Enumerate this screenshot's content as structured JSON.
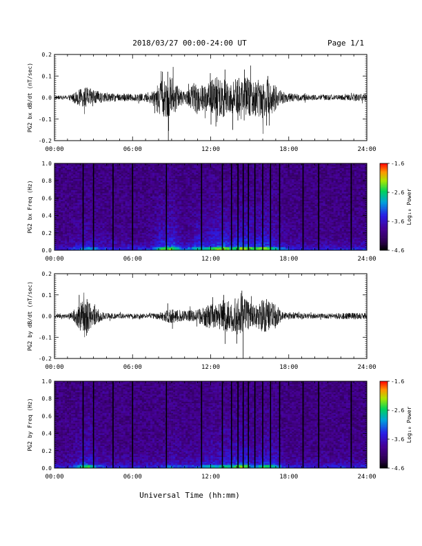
{
  "header": {
    "title": "2018/03/27  00:00-24:00 UT",
    "page": "Page 1/1"
  },
  "chart_data": [
    {
      "type": "line",
      "panel": "bx-waveform",
      "ylabel": "PG2 bx dB/dt (nT/sec)",
      "xlim": [
        0,
        24
      ],
      "ylim": [
        -0.2,
        0.2
      ],
      "yticks": [
        "0.2",
        "0.1",
        "0.0",
        "-0.1",
        "-0.2"
      ],
      "xticks": [
        "00:00",
        "06:00",
        "12:00",
        "18:00",
        "24:00"
      ],
      "envelope_x": [
        0,
        1,
        2,
        2.5,
        3,
        4,
        5,
        5.5,
        6,
        7,
        7.5,
        8,
        8.5,
        9,
        9.5,
        10,
        10.5,
        11,
        11.5,
        12,
        12.5,
        13,
        13.5,
        14,
        14.5,
        15,
        15.5,
        16,
        16.5,
        17,
        17.5,
        18,
        19,
        20,
        21,
        22,
        23,
        24
      ],
      "envelope_amp": [
        0.008,
        0.01,
        0.04,
        0.05,
        0.035,
        0.02,
        0.018,
        0.02,
        0.015,
        0.02,
        0.03,
        0.08,
        0.09,
        0.1,
        0.05,
        0.025,
        0.05,
        0.08,
        0.06,
        0.08,
        0.1,
        0.1,
        0.07,
        0.09,
        0.11,
        0.09,
        0.08,
        0.1,
        0.08,
        0.06,
        0.03,
        0.02,
        0.015,
        0.012,
        0.012,
        0.012,
        0.015,
        0.02
      ],
      "spikes": [
        {
          "x": 8.3,
          "y": 0.12
        },
        {
          "x": 8.7,
          "y": 0.12
        },
        {
          "x": 8.75,
          "y": -0.2
        },
        {
          "x": 13.1,
          "y": 0.13
        },
        {
          "x": 14.6,
          "y": 0.13
        },
        {
          "x": 13.7,
          "y": -0.15
        },
        {
          "x": 16.3,
          "y": -0.13
        },
        {
          "x": 16.4,
          "y": 0.1
        }
      ]
    },
    {
      "type": "heatmap",
      "panel": "bx-spectrogram",
      "ylabel": "PG2 bx Freq (Hz)",
      "xlim": [
        0,
        24
      ],
      "ylim": [
        0,
        1.0
      ],
      "yticks": [
        "1.0",
        "0.8",
        "0.6",
        "0.4",
        "0.2",
        "0.0"
      ],
      "xticks": [
        "00:00",
        "06:00",
        "12:00",
        "18:00",
        "24:00"
      ],
      "colorbar": {
        "label": "Log₁₀ Power",
        "min": -4.6,
        "max": -1.6,
        "ticks": [
          "-1.6",
          "-2.6",
          "-3.6",
          "-4.6"
        ]
      },
      "gap_lines_hours": [
        2.2,
        3.0,
        4.5,
        6.0,
        8.6,
        11.3,
        12.9,
        13.6,
        14.1,
        14.5,
        14.9,
        15.4,
        16.0,
        16.6,
        17.3,
        19.1,
        20.3,
        22.8
      ]
    },
    {
      "type": "line",
      "panel": "by-waveform",
      "ylabel": "PG2 by dB/dt (nT/sec)",
      "xlim": [
        0,
        24
      ],
      "ylim": [
        -0.2,
        0.2
      ],
      "yticks": [
        "0.2",
        "0.1",
        "0.0",
        "-0.1",
        "-0.2"
      ],
      "xticks": [
        "00:00",
        "06:00",
        "12:00",
        "18:00",
        "24:00"
      ],
      "envelope_x": [
        0,
        1,
        1.5,
        2,
        2.5,
        3,
        3.5,
        4,
        5,
        6,
        7,
        8,
        8.5,
        9,
        9.5,
        10,
        11,
        11.5,
        12,
        12.5,
        13,
        13.5,
        14,
        14.5,
        15,
        15.5,
        16,
        16.5,
        17,
        17.5,
        18,
        19,
        20,
        21,
        22,
        23,
        24
      ],
      "envelope_amp": [
        0.008,
        0.01,
        0.03,
        0.07,
        0.08,
        0.05,
        0.025,
        0.015,
        0.012,
        0.012,
        0.012,
        0.015,
        0.025,
        0.04,
        0.03,
        0.025,
        0.03,
        0.05,
        0.06,
        0.05,
        0.08,
        0.07,
        0.09,
        0.1,
        0.06,
        0.05,
        0.08,
        0.07,
        0.06,
        0.02,
        0.015,
        0.012,
        0.012,
        0.012,
        0.015,
        0.015,
        0.015
      ],
      "spikes": [
        {
          "x": 1.9,
          "y": 0.1
        },
        {
          "x": 2.5,
          "y": 0.08
        },
        {
          "x": 8.7,
          "y": 0.06
        },
        {
          "x": 13.0,
          "y": 0.1
        },
        {
          "x": 14.4,
          "y": 0.12
        },
        {
          "x": 14.5,
          "y": -0.2
        },
        {
          "x": 14.0,
          "y": -0.13
        },
        {
          "x": 16.3,
          "y": 0.08
        }
      ]
    },
    {
      "type": "heatmap",
      "panel": "by-spectrogram",
      "ylabel": "PG2 by Freq (Hz)",
      "xlim": [
        0,
        24
      ],
      "ylim": [
        0,
        1.0
      ],
      "yticks": [
        "1.0",
        "0.8",
        "0.6",
        "0.4",
        "0.2",
        "0.0"
      ],
      "xticks": [
        "00:00",
        "06:00",
        "12:00",
        "18:00",
        "24:00"
      ],
      "colorbar": {
        "label": "Log₁₀ Power",
        "min": -4.6,
        "max": -1.6,
        "ticks": [
          "-1.6",
          "-2.6",
          "-3.6",
          "-4.6"
        ]
      },
      "gap_lines_hours": [
        2.2,
        3.0,
        4.5,
        6.0,
        8.6,
        11.3,
        12.9,
        13.6,
        14.1,
        14.5,
        14.9,
        15.4,
        16.0,
        16.6,
        17.3,
        19.1,
        20.3,
        22.8
      ]
    }
  ],
  "footer": {
    "xlabel": "Universal Time (hh:mm)"
  }
}
